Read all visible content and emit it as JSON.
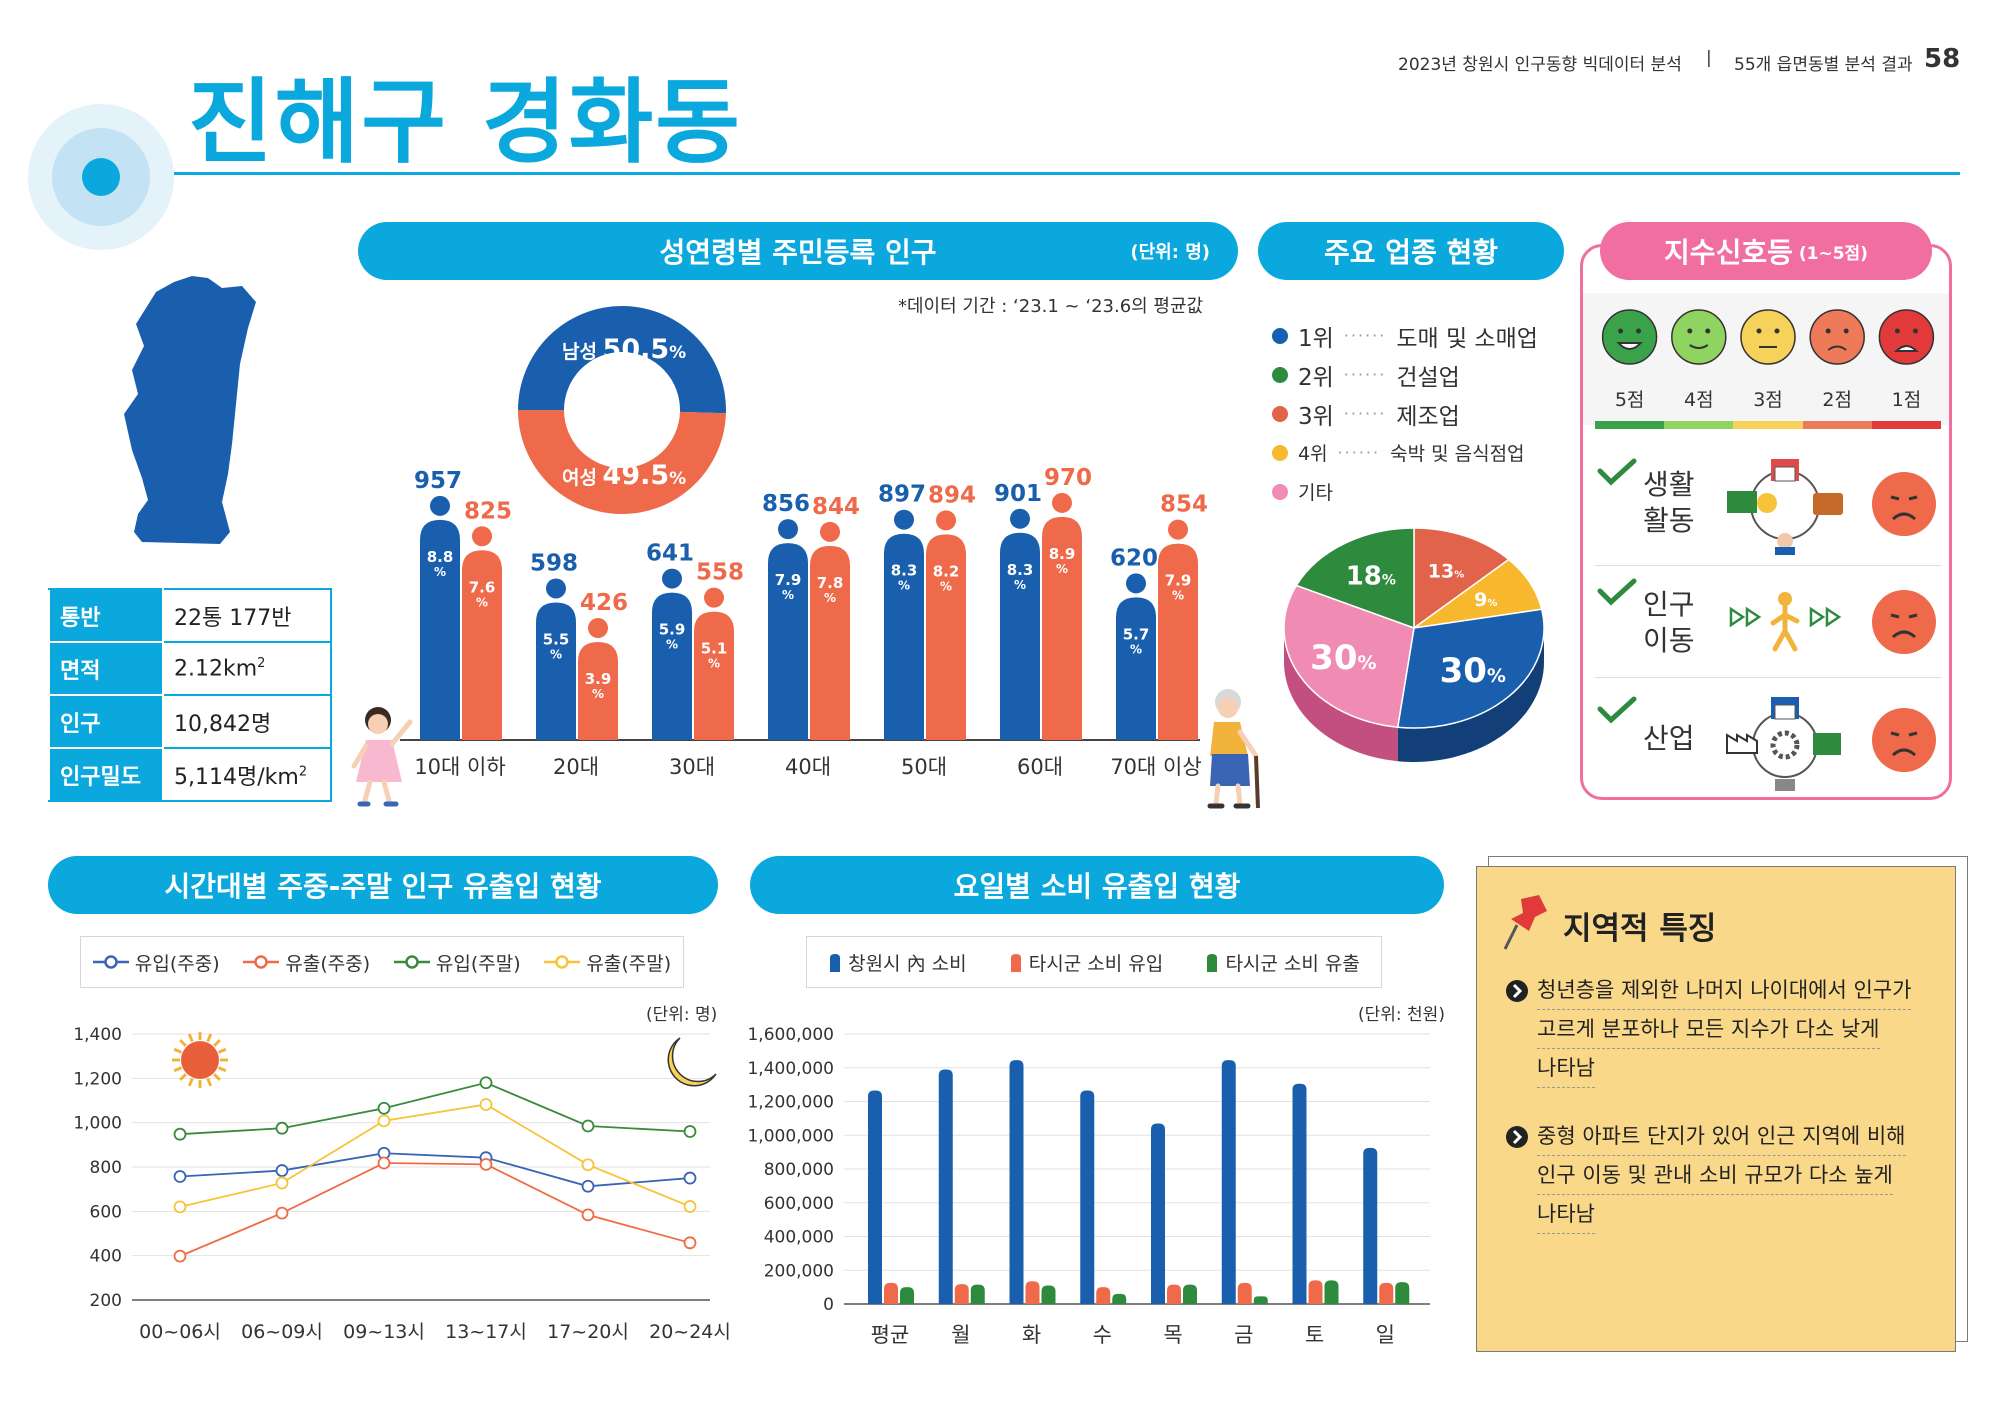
{
  "header": {
    "report_title": "2023년 창원시 인구동향 빅데이터 분석",
    "separator": "|",
    "section": "55개 읍면동별 분석 결과",
    "page_number": "58",
    "district_title": "진해구 경화동"
  },
  "colors": {
    "accent": "#0aa8dc",
    "male": "#1a5fae",
    "female": "#ef6a4a",
    "pink": "#f06fa0",
    "note_bg": "#f9d88a"
  },
  "facts": [
    {
      "key": "통반",
      "value": "22통 177반"
    },
    {
      "key": "면적",
      "value": "2.12km",
      "sup": "2"
    },
    {
      "key": "인구",
      "value": "10,842명"
    },
    {
      "key": "인구밀도",
      "value": "5,114명/km",
      "sup": "2"
    }
  ],
  "population_section": {
    "title": "성연령별 주민등록 인구",
    "unit": "(단위: 명)",
    "note": "*데이터 기간 : ‘23.1 ~ ‘23.6의 평균값",
    "gender_donut": {
      "male_label": "남성",
      "male_value": "50.5",
      "female_label": "여성",
      "female_value": "49.5",
      "male_share": 50.5,
      "female_share": 49.5,
      "pct": "%"
    }
  },
  "industry_section": {
    "title": "주요 업종 현황",
    "legend": [
      {
        "rank": "1위",
        "name": "도매 및 소매업",
        "color": "#1a5fae"
      },
      {
        "rank": "2위",
        "name": "건설업",
        "color": "#2e8b3e"
      },
      {
        "rank": "3위",
        "name": "제조업",
        "color": "#e0634a"
      },
      {
        "rank": "4위",
        "name": "숙박 및 음식점업",
        "color": "#f7b82e"
      },
      {
        "rank": "기타",
        "name": "",
        "color": "#f08bb4"
      }
    ]
  },
  "signal_section": {
    "title": "지수신호등",
    "title_sub": "(1~5점)",
    "scores": [
      {
        "label": "5점",
        "color": "#3aa34a"
      },
      {
        "label": "4점",
        "color": "#8fd460"
      },
      {
        "label": "3점",
        "color": "#f7d25a"
      },
      {
        "label": "2점",
        "color": "#ef7a5a"
      },
      {
        "label": "1점",
        "color": "#e23a3a"
      }
    ],
    "rows": [
      {
        "line1": "생활",
        "line2": "활동"
      },
      {
        "line1": "인구",
        "line2": "이동"
      },
      {
        "line1": "산업",
        "line2": ""
      }
    ]
  },
  "flow_section": {
    "title": "시간대별 주중-주말 인구 유출입 현황",
    "unit": "(단위: 명)"
  },
  "consumption_section": {
    "title": "요일별 소비 유출입 현황",
    "unit": "(단위: 천원)"
  },
  "region_section": {
    "title": "지역적 특징",
    "bullets": [
      [
        "청년층을 제외한 나머지 나이대에서 인구가",
        "고르게 분포하나 모든 지수가 다소 낮게",
        "나타남"
      ],
      [
        "중형 아파트 단지가 있어 인근 지역에 비해",
        "인구 이동 및 관내 소비 규모가 다소 높게",
        "나타남"
      ]
    ]
  },
  "chart_data": [
    {
      "type": "bar",
      "title": "성연령별 주민등록 인구",
      "categories": [
        "10대 이하",
        "20대",
        "30대",
        "40대",
        "50대",
        "60대",
        "70대 이상"
      ],
      "series": [
        {
          "name": "남성",
          "values": [
            957,
            598,
            641,
            856,
            897,
            901,
            620
          ],
          "pct": [
            "8.8",
            "5.5",
            "5.9",
            "7.9",
            "8.3",
            "8.3",
            "5.7"
          ]
        },
        {
          "name": "여성",
          "values": [
            825,
            426,
            558,
            844,
            894,
            970,
            854
          ],
          "pct": [
            "7.6",
            "3.9",
            "5.1",
            "7.8",
            "8.2",
            "8.9",
            "7.9"
          ]
        }
      ]
    },
    {
      "type": "pie",
      "title": "주요 업종 현황",
      "categories": [
        "도매 및 소매업",
        "건설업",
        "제조업",
        "숙박 및 음식점업",
        "기타"
      ],
      "values": [
        30,
        18,
        13,
        9,
        30
      ],
      "labels": [
        "30",
        "18",
        "13",
        "9",
        "30"
      ]
    },
    {
      "type": "line",
      "title": "시간대별 주중-주말 인구 유출입 현황",
      "categories": [
        "00~06시",
        "06~09시",
        "09~13시",
        "13~17시",
        "17~20시",
        "20~24시"
      ],
      "yticks": [
        "1,400",
        "1,200",
        "1,000",
        "800",
        "600",
        "400",
        "200"
      ],
      "ylim": [
        200,
        1400
      ],
      "series": [
        {
          "name": "유입(주중)",
          "color": "#3a64b4",
          "values": [
            757,
            784,
            862,
            842,
            713,
            750
          ]
        },
        {
          "name": "유출(주중)",
          "color": "#f06b45",
          "values": [
            398,
            592,
            818,
            812,
            584,
            458
          ]
        },
        {
          "name": "유입(주말)",
          "color": "#3a8a3e",
          "values": [
            948,
            975,
            1065,
            1180,
            985,
            960
          ]
        },
        {
          "name": "유출(주말)",
          "color": "#f7c33a",
          "values": [
            620,
            728,
            1008,
            1082,
            810,
            622
          ]
        }
      ]
    },
    {
      "type": "bar",
      "title": "요일별 소비 유출입 현황",
      "categories": [
        "평균",
        "월",
        "화",
        "수",
        "목",
        "금",
        "토",
        "일"
      ],
      "yticks": [
        "1,600,000",
        "1,400,000",
        "1,200,000",
        "1,000,000",
        "800,000",
        "600,000",
        "400,000",
        "200,000",
        "0"
      ],
      "ylim": [
        0,
        1600000
      ],
      "series": [
        {
          "name": "창원시 內 소비",
          "color": "#1a5fae",
          "values": [
            1265000,
            1390000,
            1445000,
            1265000,
            1070000,
            1445000,
            1305000,
            925000
          ]
        },
        {
          "name": "타시군 소비 유입",
          "color": "#ef6a4a",
          "values": [
            125000,
            118000,
            135000,
            100000,
            115000,
            125000,
            140000,
            125000
          ]
        },
        {
          "name": "타시군 소비 유출",
          "color": "#2e8b3e",
          "values": [
            100000,
            115000,
            110000,
            60000,
            115000,
            45000,
            140000,
            130000
          ]
        }
      ]
    }
  ]
}
